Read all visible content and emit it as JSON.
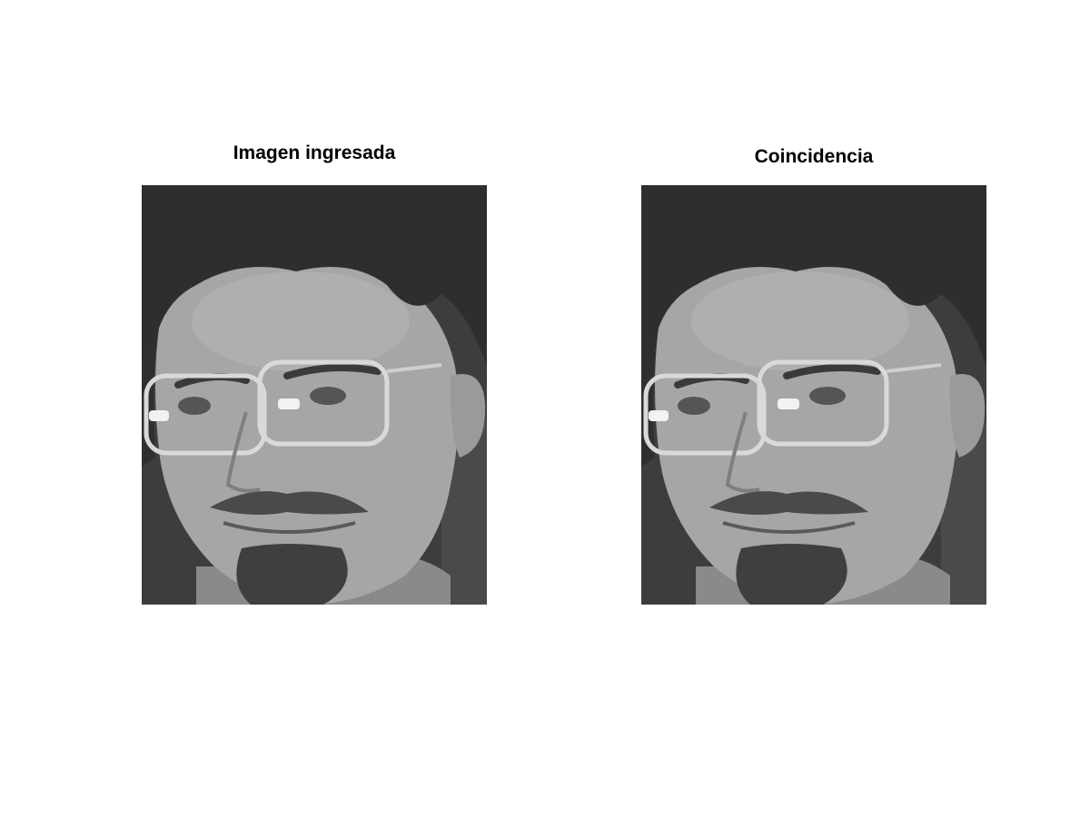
{
  "figure": {
    "panels": [
      {
        "title": "Imagen ingresada"
      },
      {
        "title": "Coincidencia"
      }
    ]
  },
  "colors": {
    "background": "#ffffff",
    "title_text": "#000000"
  }
}
